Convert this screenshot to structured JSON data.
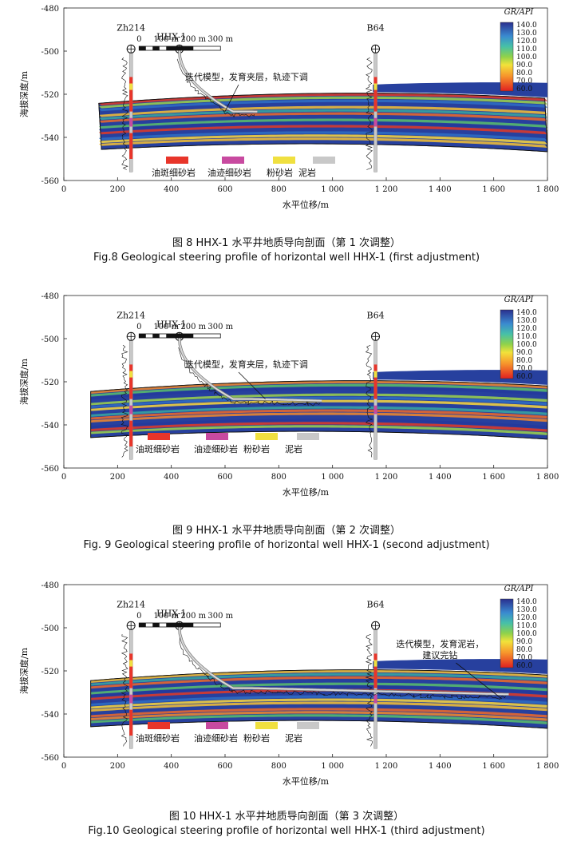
{
  "figures": [
    {
      "caption_cn": "图 8   HHX-1 水平井地质导向剖面（第 1 次调整）",
      "caption_en": "Fig.8   Geological steering profile of horizontal well HHX-1 (first adjustment)",
      "annotation": [
        "迭代模型，发育夹层，轨迹下调"
      ],
      "trajectory_end_x": 720
    },
    {
      "caption_cn": "图 9   HHX-1 水平井地质导向剖面（第 2 次调整）",
      "caption_en": "Fig. 9 Geological steering profile of horizontal well HHX-1 (second adjustment)",
      "annotation": [
        "迭代模型，发育夹层，轨迹下调"
      ],
      "trajectory_end_x": 960
    },
    {
      "caption_cn": "图 10   HHX-1 水平井地质导向剖面（第 3 次调整）",
      "caption_en": "Fig.10   Geological steering profile of horizontal well HHX-1 (third adjustment)",
      "annotation": [
        "迭代模型，发育泥岩，",
        "建议完钻"
      ],
      "trajectory_end_x": 1660
    }
  ],
  "common": {
    "y_axis_label": "海拔深度/m",
    "x_axis_label": "水平位移/m",
    "x_ticks": [
      "0",
      "200",
      "400",
      "600",
      "800",
      "1 000",
      "1 200",
      "1 400",
      "1 600",
      "1 800"
    ],
    "y_ticks": [
      "-480",
      "-500",
      "-520",
      "-540",
      "-560"
    ],
    "wells": [
      "Zh214",
      "HHX-1",
      "B64"
    ],
    "scale_labels": [
      "0",
      "100 m",
      "200 m",
      "300 m"
    ],
    "colorbar_title": "GR/API",
    "colorbar_ticks": [
      "140.0",
      "130.0",
      "120.0",
      "110.0",
      "100.0",
      "90.0",
      "80.0",
      "70.0",
      "60.0"
    ],
    "legend": [
      {
        "label": "油斑细砂岩",
        "color": "#e8352a"
      },
      {
        "label": "油迹细砂岩",
        "color": "#c84aa0"
      },
      {
        "label": "粉砂岩",
        "color": "#f0e040"
      },
      {
        "label": "泥岩",
        "color": "#c8c8c8"
      }
    ]
  }
}
